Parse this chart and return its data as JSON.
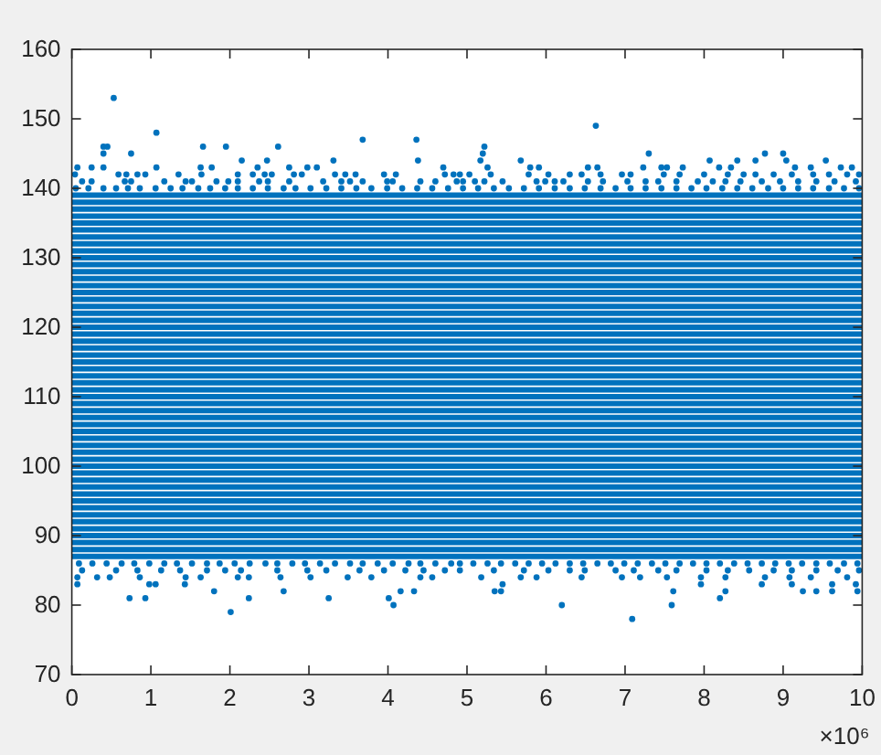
{
  "chart_data": {
    "type": "scatter",
    "color": "#0072bd",
    "marker": "none",
    "xlim": [
      0,
      10
    ],
    "xticks": [
      0,
      1,
      2,
      3,
      4,
      5,
      6,
      7,
      8,
      9,
      10
    ],
    "ylim": [
      70,
      160
    ],
    "yticks": [
      70,
      80,
      90,
      100,
      110,
      120,
      130,
      140,
      150,
      160
    ],
    "annotations": [
      "×10⁶"
    ],
    "series": [
      {
        "type": "line",
        "x": [
          0,
          10
        ],
        "values": [
          87,
          87
        ]
      },
      {
        "type": "line",
        "x": [
          0,
          10
        ],
        "values": [
          88,
          88
        ]
      },
      {
        "type": "line",
        "x": [
          0,
          10
        ],
        "values": [
          89,
          89
        ]
      },
      {
        "type": "line",
        "x": [
          0,
          10
        ],
        "values": [
          90,
          90
        ]
      },
      {
        "type": "line",
        "x": [
          0,
          10
        ],
        "values": [
          91,
          91
        ]
      },
      {
        "type": "line",
        "x": [
          0,
          10
        ],
        "values": [
          92,
          92
        ]
      },
      {
        "type": "line",
        "x": [
          0,
          10
        ],
        "values": [
          93,
          93
        ]
      },
      {
        "type": "line",
        "x": [
          0,
          10
        ],
        "values": [
          94,
          94
        ]
      },
      {
        "type": "line",
        "x": [
          0,
          10
        ],
        "values": [
          95,
          95
        ]
      },
      {
        "type": "line",
        "x": [
          0,
          10
        ],
        "values": [
          96,
          96
        ]
      },
      {
        "type": "line",
        "x": [
          0,
          10
        ],
        "values": [
          97,
          97
        ]
      },
      {
        "type": "line",
        "x": [
          0,
          10
        ],
        "values": [
          98,
          98
        ]
      },
      {
        "type": "line",
        "x": [
          0,
          10
        ],
        "values": [
          99,
          99
        ]
      },
      {
        "type": "line",
        "x": [
          0,
          10
        ],
        "values": [
          100,
          100
        ]
      },
      {
        "type": "line",
        "x": [
          0,
          10
        ],
        "values": [
          101,
          101
        ]
      },
      {
        "type": "line",
        "x": [
          0,
          10
        ],
        "values": [
          102,
          102
        ]
      },
      {
        "type": "line",
        "x": [
          0,
          10
        ],
        "values": [
          103,
          103
        ]
      },
      {
        "type": "line",
        "x": [
          0,
          10
        ],
        "values": [
          104,
          104
        ]
      },
      {
        "type": "line",
        "x": [
          0,
          10
        ],
        "values": [
          105,
          105
        ]
      },
      {
        "type": "line",
        "x": [
          0,
          10
        ],
        "values": [
          106,
          106
        ]
      },
      {
        "type": "line",
        "x": [
          0,
          10
        ],
        "values": [
          107,
          107
        ]
      },
      {
        "type": "line",
        "x": [
          0,
          10
        ],
        "values": [
          108,
          108
        ]
      },
      {
        "type": "line",
        "x": [
          0,
          10
        ],
        "values": [
          109,
          109
        ]
      },
      {
        "type": "line",
        "x": [
          0,
          10
        ],
        "values": [
          110,
          110
        ]
      },
      {
        "type": "line",
        "x": [
          0,
          10
        ],
        "values": [
          111,
          111
        ]
      },
      {
        "type": "line",
        "x": [
          0,
          10
        ],
        "values": [
          112,
          112
        ]
      },
      {
        "type": "line",
        "x": [
          0,
          10
        ],
        "values": [
          113,
          113
        ]
      },
      {
        "type": "line",
        "x": [
          0,
          10
        ],
        "values": [
          114,
          114
        ]
      },
      {
        "type": "line",
        "x": [
          0,
          10
        ],
        "values": [
          115,
          115
        ]
      },
      {
        "type": "line",
        "x": [
          0,
          10
        ],
        "values": [
          116,
          116
        ]
      },
      {
        "type": "line",
        "x": [
          0,
          10
        ],
        "values": [
          117,
          117
        ]
      },
      {
        "type": "line",
        "x": [
          0,
          10
        ],
        "values": [
          118,
          118
        ]
      },
      {
        "type": "line",
        "x": [
          0,
          10
        ],
        "values": [
          119,
          119
        ]
      },
      {
        "type": "line",
        "x": [
          0,
          10
        ],
        "values": [
          120,
          120
        ]
      },
      {
        "type": "line",
        "x": [
          0,
          10
        ],
        "values": [
          121,
          121
        ]
      },
      {
        "type": "line",
        "x": [
          0,
          10
        ],
        "values": [
          122,
          122
        ]
      },
      {
        "type": "line",
        "x": [
          0,
          10
        ],
        "values": [
          123,
          123
        ]
      },
      {
        "type": "line",
        "x": [
          0,
          10
        ],
        "values": [
          124,
          124
        ]
      },
      {
        "type": "line",
        "x": [
          0,
          10
        ],
        "values": [
          125,
          125
        ]
      },
      {
        "type": "line",
        "x": [
          0,
          10
        ],
        "values": [
          126,
          126
        ]
      },
      {
        "type": "line",
        "x": [
          0,
          10
        ],
        "values": [
          127,
          127
        ]
      },
      {
        "type": "line",
        "x": [
          0,
          10
        ],
        "values": [
          128,
          128
        ]
      },
      {
        "type": "line",
        "x": [
          0,
          10
        ],
        "values": [
          129,
          129
        ]
      },
      {
        "type": "line",
        "x": [
          0,
          10
        ],
        "values": [
          130,
          130
        ]
      },
      {
        "type": "line",
        "x": [
          0,
          10
        ],
        "values": [
          131,
          131
        ]
      },
      {
        "type": "line",
        "x": [
          0,
          10
        ],
        "values": [
          132,
          132
        ]
      },
      {
        "type": "line",
        "x": [
          0,
          10
        ],
        "values": [
          133,
          133
        ]
      },
      {
        "type": "line",
        "x": [
          0,
          10
        ],
        "values": [
          134,
          134
        ]
      },
      {
        "type": "line",
        "x": [
          0,
          10
        ],
        "values": [
          135,
          135
        ]
      },
      {
        "type": "line",
        "x": [
          0,
          10
        ],
        "values": [
          136,
          136
        ]
      },
      {
        "type": "line",
        "x": [
          0,
          10
        ],
        "values": [
          137,
          137
        ]
      },
      {
        "type": "line",
        "x": [
          0,
          10
        ],
        "values": [
          138,
          138
        ]
      },
      {
        "type": "line",
        "x": [
          0,
          10
        ],
        "values": [
          139,
          139
        ]
      },
      {
        "marker": "circle",
        "x": [
          0.53
        ],
        "values": [
          153
        ]
      },
      {
        "marker": "circle",
        "x": [
          6.63
        ],
        "values": [
          149
        ]
      },
      {
        "marker": "circle",
        "x": [
          1.07
        ],
        "values": [
          148
        ]
      },
      {
        "marker": "circle",
        "x": [
          3.68,
          4.36
        ],
        "values": [
          147,
          147
        ]
      },
      {
        "marker": "circle",
        "x": [
          0.4,
          0.45,
          1.66,
          1.95,
          2.61,
          5.22
        ],
        "values": [
          146,
          146,
          146,
          146,
          146,
          146
        ]
      },
      {
        "marker": "circle",
        "x": [
          0.4,
          0.75,
          5.2,
          7.3,
          8.77,
          9.0
        ],
        "values": [
          145,
          145,
          145,
          145,
          145,
          145
        ]
      },
      {
        "marker": "circle",
        "x": [
          2.15,
          2.47,
          3.31,
          4.38,
          5.17,
          5.68,
          8.07,
          8.42,
          8.65,
          9.04,
          9.54
        ],
        "values": [
          144,
          144,
          144,
          144,
          144,
          144,
          144,
          144,
          144,
          144,
          144
        ]
      },
      {
        "marker": "circle",
        "x": [
          0.07,
          0.25,
          0.4,
          1.07,
          1.63,
          1.77,
          2.35,
          2.75,
          2.98,
          3.1,
          4.7,
          5.26,
          5.8,
          5.91,
          6.53,
          6.65,
          7.23,
          7.46,
          7.53,
          7.73,
          8.19,
          8.34,
          9.15,
          9.35,
          9.73,
          9.87
        ],
        "values": [
          143,
          143,
          143,
          143,
          143,
          143,
          143,
          143,
          143,
          143,
          143,
          143,
          143,
          143,
          143,
          143,
          143,
          143,
          143,
          143,
          143,
          143,
          143,
          143,
          143,
          143
        ]
      },
      {
        "marker": "circle",
        "x": [
          0.04,
          0.59,
          0.69,
          0.83,
          0.93,
          1.35,
          1.64,
          2.1,
          2.29,
          2.44,
          2.53,
          2.81,
          2.91,
          3.33,
          3.46,
          3.59,
          3.95,
          4.1,
          4.72,
          4.83,
          4.91,
          5.03,
          5.3,
          5.78,
          6.03,
          6.3,
          6.45,
          6.69,
          6.96,
          7.07,
          7.49,
          7.69,
          8.0,
          8.3,
          8.5,
          8.65,
          8.88,
          9.11,
          9.38,
          9.58,
          9.81,
          9.96
        ],
        "values": [
          142,
          142,
          142,
          142,
          142,
          142,
          142,
          142,
          142,
          142,
          142,
          142,
          142,
          142,
          142,
          142,
          142,
          142,
          142,
          142,
          142,
          142,
          142,
          142,
          142,
          142,
          142,
          142,
          142,
          142,
          142,
          142,
          142,
          142,
          142,
          142,
          142,
          142,
          142,
          142,
          142,
          142
        ]
      },
      {
        "marker": "circle",
        "x": [
          0.13,
          0.25,
          0.67,
          0.75,
          1.17,
          1.44,
          1.52,
          1.83,
          1.98,
          2.1,
          2.37,
          2.48,
          2.75,
          3.18,
          3.41,
          3.52,
          3.68,
          3.99,
          4.06,
          4.41,
          4.6,
          4.87,
          4.95,
          5.1,
          5.22,
          5.45,
          5.88,
          5.99,
          6.11,
          6.22,
          6.53,
          6.72,
          7.03,
          7.26,
          7.42,
          7.65,
          7.92,
          8.11,
          8.27,
          8.46,
          8.73,
          8.96,
          9.19,
          9.42,
          9.65,
          9.92
        ],
        "values": [
          141,
          141,
          141,
          141,
          141,
          141,
          141,
          141,
          141,
          141,
          141,
          141,
          141,
          141,
          141,
          141,
          141,
          141,
          141,
          141,
          141,
          141,
          141,
          141,
          141,
          141,
          141,
          141,
          141,
          141,
          141,
          141,
          141,
          141,
          141,
          141,
          141,
          141,
          141,
          141,
          141,
          141,
          141,
          141,
          141,
          141
        ]
      },
      {
        "marker": "circle",
        "x": [
          0.05,
          0.21,
          0.4,
          0.56,
          0.71,
          0.86,
          1.06,
          1.25,
          1.4,
          1.6,
          1.75,
          1.94,
          2.1,
          2.29,
          2.48,
          2.68,
          2.83,
          3.02,
          3.22,
          3.41,
          3.6,
          3.79,
          3.99,
          4.18,
          4.37,
          4.56,
          4.76,
          4.95,
          5.14,
          5.34,
          5.53,
          5.72,
          5.91,
          6.11,
          6.3,
          6.49,
          6.69,
          6.88,
          7.07,
          7.26,
          7.46,
          7.65,
          7.84,
          8.03,
          8.23,
          8.42,
          8.61,
          8.81,
          9.0,
          9.19,
          9.38,
          9.58,
          9.77,
          9.96
        ],
        "values": [
          140,
          140,
          140,
          140,
          140,
          140,
          140,
          140,
          140,
          140,
          140,
          140,
          140,
          140,
          140,
          140,
          140,
          140,
          140,
          140,
          140,
          140,
          140,
          140,
          140,
          140,
          140,
          140,
          140,
          140,
          140,
          140,
          140,
          140,
          140,
          140,
          140,
          140,
          140,
          140,
          140,
          140,
          140,
          140,
          140,
          140,
          140,
          140,
          140,
          140,
          140,
          140,
          140,
          140
        ]
      },
      {
        "marker": "circle",
        "x": [
          0.09,
          0.26,
          0.44,
          0.63,
          0.79,
          0.98,
          1.17,
          1.33,
          1.52,
          1.71,
          1.87,
          2.06,
          2.25,
          2.45,
          2.6,
          2.79,
          2.95,
          3.14,
          3.33,
          3.52,
          3.68,
          3.87,
          4.06,
          4.26,
          4.41,
          4.6,
          4.8,
          4.91,
          5.08,
          5.26,
          5.43,
          5.61,
          5.78,
          5.95,
          6.12,
          6.3,
          6.47,
          6.65,
          6.82,
          6.99,
          7.16,
          7.34,
          7.51,
          7.69,
          7.86,
          8.03,
          8.2,
          8.38,
          8.55,
          8.73,
          8.9,
          9.07,
          9.24,
          9.42,
          9.59,
          9.77,
          9.94
        ],
        "values": [
          86,
          86,
          86,
          86,
          86,
          86,
          86,
          86,
          86,
          86,
          86,
          86,
          86,
          86,
          86,
          86,
          86,
          86,
          86,
          86,
          86,
          86,
          86,
          86,
          86,
          86,
          86,
          86,
          86,
          86,
          86,
          86,
          86,
          86,
          86,
          86,
          86,
          86,
          86,
          86,
          86,
          86,
          86,
          86,
          86,
          86,
          86,
          86,
          86,
          86,
          86,
          86,
          86,
          86,
          86,
          86,
          86
        ]
      },
      {
        "marker": "circle",
        "x": [
          0.13,
          0.56,
          0.83,
          1.13,
          1.37,
          1.71,
          1.94,
          2.14,
          2.6,
          2.98,
          3.22,
          3.64,
          3.95,
          4.22,
          4.45,
          4.72,
          4.91,
          5.34,
          5.72,
          6.03,
          6.3,
          6.49,
          6.88,
          7.11,
          7.42,
          7.65,
          8.03,
          8.3,
          8.57,
          8.88,
          9.11,
          9.42,
          9.69,
          9.96
        ],
        "values": [
          85,
          85,
          85,
          85,
          85,
          85,
          85,
          85,
          85,
          85,
          85,
          85,
          85,
          85,
          85,
          85,
          85,
          85,
          85,
          85,
          85,
          85,
          85,
          85,
          85,
          85,
          85,
          85,
          85,
          85,
          85,
          85,
          85,
          85
        ]
      },
      {
        "marker": "circle",
        "x": [
          0.07,
          0.32,
          0.48,
          0.86,
          1.44,
          1.63,
          2.1,
          2.24,
          2.64,
          3.02,
          3.49,
          3.79,
          4.41,
          4.56,
          5.18,
          5.68,
          5.88,
          6.45,
          6.96,
          7.19,
          7.53,
          7.96,
          8.27,
          8.77,
          9.08,
          9.35,
          9.81
        ],
        "values": [
          84,
          84,
          84,
          84,
          84,
          84,
          84,
          84,
          84,
          84,
          84,
          84,
          84,
          84,
          84,
          84,
          84,
          84,
          84,
          84,
          84,
          84,
          84,
          84,
          84,
          84,
          84
        ]
      },
      {
        "marker": "circle",
        "x": [
          0.07,
          0.98,
          1.06,
          1.43,
          5.45,
          7.96,
          8.73,
          9.11,
          9.62,
          9.92
        ],
        "values": [
          83,
          83,
          83,
          83,
          83,
          83,
          83,
          83,
          83,
          83
        ]
      },
      {
        "marker": "circle",
        "x": [
          1.8,
          2.68,
          4.16,
          4.33,
          5.35,
          5.43,
          7.61,
          8.27,
          9.25,
          9.42,
          9.62,
          9.94
        ],
        "values": [
          82,
          82,
          82,
          82,
          82,
          82,
          82,
          82,
          82,
          82,
          82,
          82
        ]
      },
      {
        "marker": "circle",
        "x": [
          0.73,
          0.93,
          2.24,
          3.25,
          4.01,
          8.2
        ],
        "values": [
          81,
          81,
          81,
          81,
          81,
          81
        ]
      },
      {
        "marker": "circle",
        "x": [
          4.07,
          6.2,
          7.59
        ],
        "values": [
          80,
          80,
          80
        ]
      },
      {
        "marker": "circle",
        "x": [
          2.01
        ],
        "values": [
          79
        ]
      },
      {
        "marker": "circle",
        "x": [
          7.09
        ],
        "values": [
          78
        ]
      }
    ]
  }
}
